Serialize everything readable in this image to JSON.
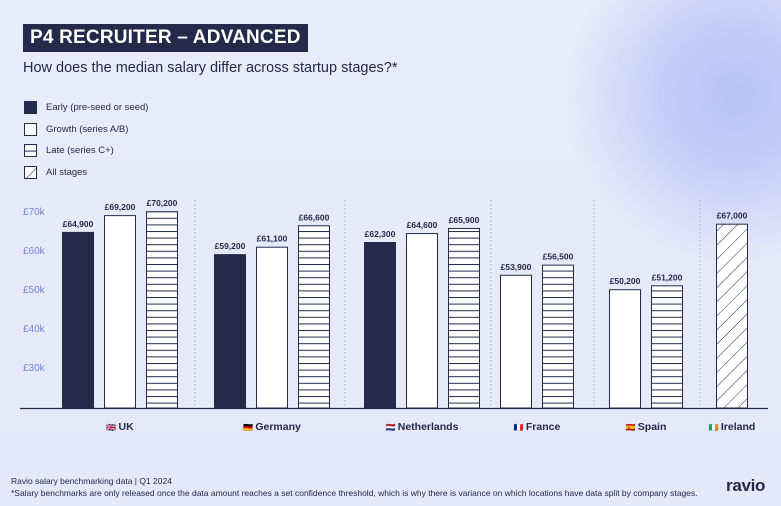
{
  "header": {
    "title": "P4 RECRUITER – ADVANCED",
    "subtitle": "How does the median salary differ across startup stages?*"
  },
  "legend": [
    {
      "key": "early",
      "label": "Early (pre-seed or seed)"
    },
    {
      "key": "growth",
      "label": "Growth (series A/B)"
    },
    {
      "key": "late",
      "label": "Late (series C+)"
    },
    {
      "key": "all",
      "label": "All stages"
    }
  ],
  "footer": {
    "source": "Ravio salary benchmarking data | Q1 2024",
    "note": "*Salary benchmarks are only released once the data amount reaches a set confidence threshold, which is why there is variance on which locations have data split by company stages.",
    "brand": "ravio"
  },
  "colors": {
    "navy": "#232a4a",
    "axis_label": "#6f86d8",
    "grid_separator": "#9aa0b8"
  },
  "chart_data": {
    "type": "bar",
    "title": "How does the median salary differ across startup stages?*",
    "y_ticks": [
      {
        "value": 30000,
        "label": "£30k"
      },
      {
        "value": 40000,
        "label": "£40k"
      },
      {
        "value": 50000,
        "label": "£50k"
      },
      {
        "value": 60000,
        "label": "£60k"
      },
      {
        "value": 70000,
        "label": "£70k"
      }
    ],
    "ylim": [
      20000,
      72000
    ],
    "legend_position": "top-left",
    "groups": [
      {
        "country": "UK",
        "flag": "🇬🇧",
        "bars": [
          {
            "stage": "early",
            "value": 64900,
            "label": "£64,900"
          },
          {
            "stage": "growth",
            "value": 69200,
            "label": "£69,200"
          },
          {
            "stage": "late",
            "value": 70200,
            "label": "£70,200"
          }
        ]
      },
      {
        "country": "Germany",
        "flag": "🇩🇪",
        "bars": [
          {
            "stage": "early",
            "value": 59200,
            "label": "£59,200"
          },
          {
            "stage": "growth",
            "value": 61100,
            "label": "£61,100"
          },
          {
            "stage": "late",
            "value": 66600,
            "label": "£66,600"
          }
        ]
      },
      {
        "country": "Netherlands",
        "flag": "🇳🇱",
        "bars": [
          {
            "stage": "early",
            "value": 62300,
            "label": "£62,300"
          },
          {
            "stage": "growth",
            "value": 64600,
            "label": "£64,600"
          },
          {
            "stage": "late",
            "value": 65900,
            "label": "£65,900"
          }
        ]
      },
      {
        "country": "France",
        "flag": "🇫🇷",
        "bars": [
          {
            "stage": "growth",
            "value": 53900,
            "label": "£53,900"
          },
          {
            "stage": "late",
            "value": 56500,
            "label": "£56,500"
          }
        ]
      },
      {
        "country": "Spain",
        "flag": "🇪🇸",
        "bars": [
          {
            "stage": "growth",
            "value": 50200,
            "label": "£50,200"
          },
          {
            "stage": "late",
            "value": 51200,
            "label": "£51,200"
          }
        ]
      },
      {
        "country": "Ireland",
        "flag": "🇮🇪",
        "bars": [
          {
            "stage": "all",
            "value": 67000,
            "label": "£67,000"
          }
        ]
      }
    ]
  }
}
